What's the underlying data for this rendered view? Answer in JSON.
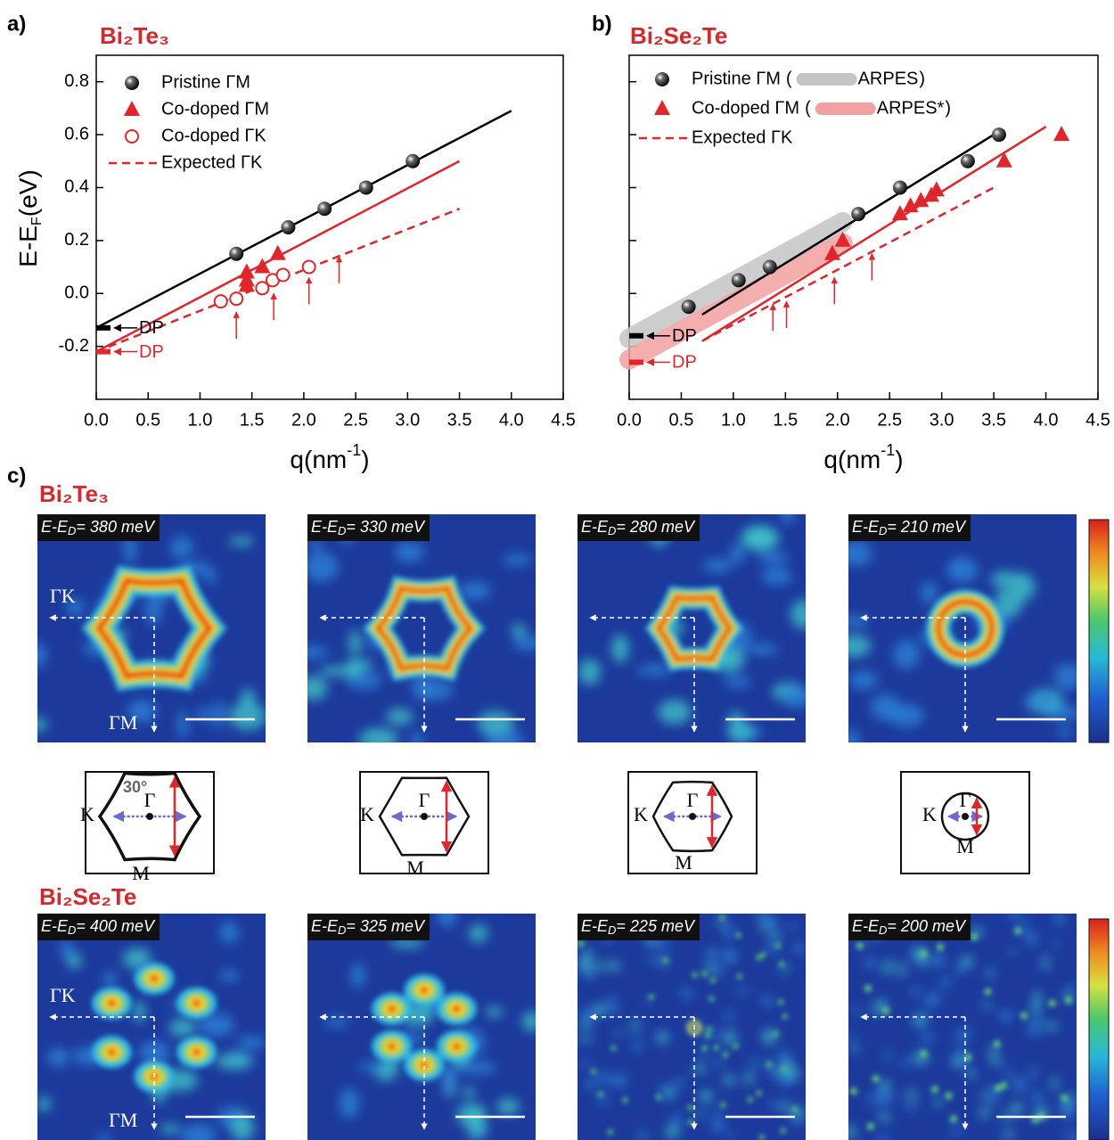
{
  "chart_data": [
    {
      "type": "scatter",
      "panel": "a)",
      "title": "Bi₂Te₃",
      "y_label": "E-E",
      "y_label_sub": "F",
      "y_label_unit": "(eV)",
      "x_label": "q(nm",
      "x_label_sup": "-1",
      "x_label_end": ")",
      "xlim": [
        0,
        4.5
      ],
      "ylim": [
        -0.4,
        0.9
      ],
      "xticks": [
        {
          "value": 0,
          "label": "0.0"
        },
        0.5,
        {
          "value": 1,
          "label": "1.0"
        },
        1.5,
        {
          "value": 2,
          "label": "2.0"
        },
        2.5,
        {
          "value": 3,
          "label": "3.0"
        },
        3.5,
        {
          "value": 4,
          "label": "4.0"
        },
        4.5
      ],
      "yticks": [
        -0.2,
        {
          "value": 0,
          "label": "0.0"
        },
        0.2,
        0.4,
        0.6,
        0.8
      ],
      "show_ytick_labels": true,
      "series": [
        {
          "name": "Pristine ΓM",
          "color": "#000000",
          "marker": "sphere",
          "x": [
            1.35,
            1.85,
            2.2,
            2.6,
            3.05
          ],
          "values": [
            0.15,
            0.25,
            0.32,
            0.4,
            0.5
          ],
          "fit": {
            "x": [
              0,
              4
            ],
            "values": [
              -0.13,
              0.69
            ]
          }
        },
        {
          "name": "Co-doped ΓM",
          "color": "#e0262b",
          "marker": "triangle",
          "x": [
            1.45,
            1.45,
            1.45,
            1.6,
            1.75
          ],
          "values": [
            0.08,
            0.05,
            0.03,
            0.1,
            0.15
          ],
          "fit": {
            "x": [
              0,
              3.5
            ],
            "values": [
              -0.22,
              0.5
            ]
          }
        },
        {
          "name": "Co-doped ΓK",
          "color": "#e0262b",
          "marker": "circle-open",
          "x": [
            1.2,
            1.35,
            1.6,
            1.7,
            1.8,
            2.05
          ],
          "values": [
            -0.03,
            -0.02,
            0.02,
            0.05,
            0.07,
            0.1
          ]
        },
        {
          "name": "Expected ΓK",
          "color": "#e0262b",
          "marker": "none",
          "dash": true,
          "x": [
            0,
            3.5
          ],
          "values": [
            -0.22,
            0.32
          ]
        }
      ],
      "annotations": [
        {
          "text": "DP",
          "x": 0,
          "y": -0.13,
          "color": "#000000"
        },
        {
          "text": "DP",
          "x": 0,
          "y": -0.22,
          "color": "#e0262b"
        }
      ],
      "arrows": {
        "color": "#e0262b",
        "x": [
          1.35,
          1.71,
          2.05,
          2.34
        ],
        "y": [
          -0.07,
          0.0,
          0.06,
          0.14
        ]
      }
    },
    {
      "type": "scatter",
      "panel": "b)",
      "title": "Bi₂Se₂Te",
      "x_label": "q(nm",
      "x_label_sup": "-1",
      "x_label_end": ")",
      "xlim": [
        0,
        4.5
      ],
      "ylim": [
        -0.4,
        0.9
      ],
      "xticks": [
        {
          "value": 0,
          "label": "0.0"
        },
        0.5,
        {
          "value": 1,
          "label": "1.0"
        },
        1.5,
        {
          "value": 2,
          "label": "2.0"
        },
        2.5,
        {
          "value": 3,
          "label": "3.0"
        },
        3.5,
        {
          "value": 4,
          "label": "4.0"
        },
        4.5
      ],
      "yticks": [
        -0.2,
        0,
        0.2,
        0.4,
        0.6,
        0.8
      ],
      "show_ytick_labels": false,
      "legend_brackets": [
        "(",
        ")"
      ],
      "bands": [
        {
          "name": "ARPES",
          "color": "#c4c4c4",
          "x": [
            0,
            2.05
          ],
          "values": [
            -0.17,
            0.27
          ]
        },
        {
          "name": "ARPES*",
          "color": "#f3a0a0",
          "x": [
            0,
            2.05
          ],
          "values": [
            -0.25,
            0.19
          ]
        }
      ],
      "series": [
        {
          "name": "Pristine ΓM",
          "color": "#000000",
          "marker": "sphere",
          "x": [
            0.57,
            1.05,
            1.35,
            2.2,
            2.6,
            3.25,
            3.55
          ],
          "values": [
            -0.05,
            0.05,
            0.1,
            0.3,
            0.4,
            0.5,
            0.6
          ],
          "fit": {
            "x": [
              0.7,
              3.5
            ],
            "values": [
              -0.08,
              0.6
            ]
          }
        },
        {
          "name": "Co-doped ΓM",
          "color": "#e0262b",
          "marker": "triangle",
          "x": [
            1.95,
            2.05,
            2.6,
            2.7,
            2.8,
            2.9,
            2.95,
            3.6,
            4.15
          ],
          "values": [
            0.15,
            0.2,
            0.3,
            0.33,
            0.35,
            0.37,
            0.39,
            0.5,
            0.6
          ],
          "fit": {
            "x": [
              0.7,
              4.0
            ],
            "values": [
              -0.18,
              0.63
            ]
          }
        },
        {
          "name": "Expected ΓK",
          "color": "#e0262b",
          "marker": "none",
          "dash": true,
          "x": [
            0.7,
            3.5
          ],
          "values": [
            -0.18,
            0.4
          ]
        }
      ],
      "annotations": [
        {
          "text": "DP",
          "x": 0,
          "y": -0.16,
          "color": "#000000"
        },
        {
          "text": "DP",
          "x": 0,
          "y": -0.26,
          "color": "#e0262b"
        }
      ],
      "arrows": {
        "color": "#e0262b",
        "x": [
          1.38,
          1.51,
          1.97,
          2.33
        ],
        "y": [
          -0.04,
          -0.03,
          0.06,
          0.15
        ]
      }
    }
  ],
  "panel_c": {
    "label": "c)",
    "energy_prefix": "E-E",
    "energy_sub": "D",
    "rows": [
      {
        "material": "Bi₂Te₃",
        "energies": [
          "= 380 meV",
          "= 330 meV",
          "= 280 meV",
          "= 210 meV"
        ],
        "directions": [
          "ΓK",
          "ΓM"
        ],
        "schematics": [
          {
            "angle": "30°",
            "k": "K",
            "gamma": "Γ",
            "m": "M"
          },
          {
            "k": "K",
            "gamma": "Γ",
            "m": "M"
          },
          {
            "k": "K",
            "gamma": "Γ",
            "m": "M"
          },
          {
            "k": "K",
            "gamma": "Γ",
            "m": "M"
          }
        ]
      },
      {
        "material": "Bi₂Se₂Te",
        "energies": [
          "= 400 meV",
          "= 325 meV",
          "= 225 meV",
          "= 200 meV"
        ],
        "directions": [
          "ΓK",
          "ΓM"
        ]
      }
    ]
  }
}
